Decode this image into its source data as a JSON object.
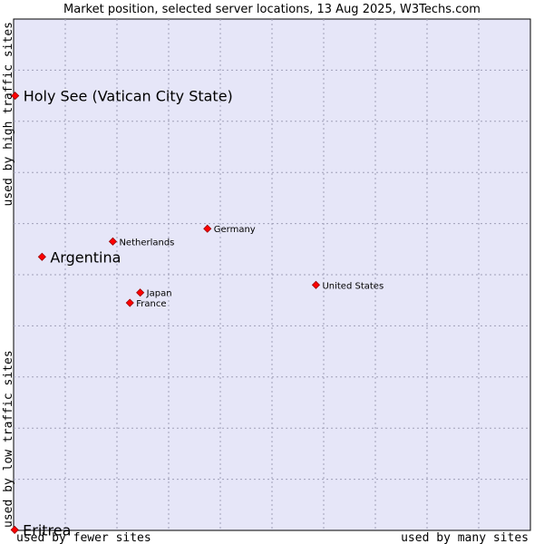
{
  "chart_data": {
    "type": "scatter",
    "title": "Market position, selected server locations, 13 Aug 2025, W3Techs.com",
    "x_low_label": "used by fewer sites",
    "x_high_label": "used by many sites",
    "y_low_label": "used by low traffic sites",
    "y_high_label": "used by high traffic sites",
    "xlim": [
      0,
      100
    ],
    "ylim": [
      0,
      100
    ],
    "grid": true,
    "point_color": "#ff0000",
    "plot_background": "#e6e6f8",
    "points": [
      {
        "label": "Holy See (Vatican City State)",
        "x": 0.3,
        "y": 85,
        "emphasis": true
      },
      {
        "label": "Argentina",
        "x": 5.5,
        "y": 53.5,
        "emphasis": true
      },
      {
        "label": "Netherlands",
        "x": 19.2,
        "y": 56.5,
        "emphasis": false
      },
      {
        "label": "Germany",
        "x": 37.5,
        "y": 59,
        "emphasis": false
      },
      {
        "label": "United States",
        "x": 58.5,
        "y": 48,
        "emphasis": false
      },
      {
        "label": "Japan",
        "x": 24.5,
        "y": 46.5,
        "emphasis": false
      },
      {
        "label": "France",
        "x": 22.5,
        "y": 44.5,
        "emphasis": false
      },
      {
        "label": "Eritrea",
        "x": 0.2,
        "y": 0.1,
        "emphasis": true
      }
    ]
  }
}
